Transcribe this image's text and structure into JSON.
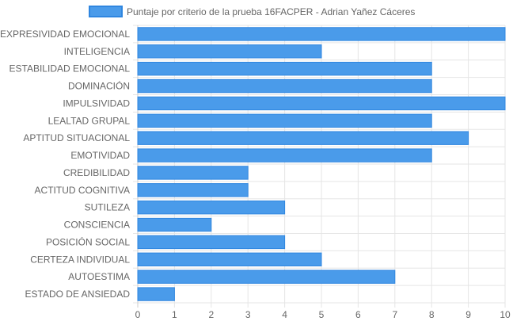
{
  "chart_data": {
    "type": "bar",
    "orientation": "horizontal",
    "legend": {
      "position": "top",
      "label": "Puntaje por criterio de la prueba 16FACPER - Adrian Yañez Cáceres"
    },
    "categories": [
      "EXPRESIVIDAD EMOCIONAL",
      "INTELIGENCIA",
      "ESTABILIDAD EMOCIONAL",
      "DOMINACIÓN",
      "IMPULSIVIDAD",
      "LEALTAD GRUPAL",
      "APTITUD SITUACIONAL",
      "EMOTIVIDAD",
      "CREDIBILIDAD",
      "ACTITUD COGNITIVA",
      "SUTILEZA",
      "CONSCIENCIA",
      "POSICIÓN SOCIAL",
      "CERTEZA INDIVIDUAL",
      "AUTOESTIMA",
      "ESTADO DE ANSIEDAD"
    ],
    "series": [
      {
        "name": "Puntaje por criterio de la prueba 16FACPER - Adrian Yañez Cáceres",
        "values": [
          10,
          5,
          8,
          8,
          10,
          8,
          9,
          8,
          3,
          3,
          4,
          2,
          4,
          5,
          7,
          1
        ],
        "color": "#4a9bea",
        "border_color": "#2f86e0"
      }
    ],
    "xlim": [
      0,
      10
    ],
    "xticks": [
      "0",
      "1",
      "2",
      "3",
      "4",
      "5",
      "6",
      "7",
      "8",
      "9",
      "10"
    ],
    "grid": true
  }
}
